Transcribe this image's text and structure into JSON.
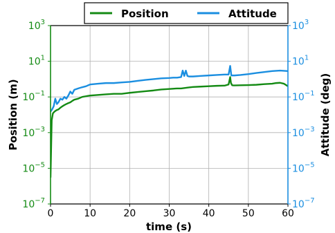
{
  "chart_data": {
    "type": "line",
    "title": "",
    "xlabel": "time (s)",
    "ylabel_left": "Position (m)",
    "ylabel_right": "Attitude (deg)",
    "xlim": [
      0,
      60
    ],
    "ylim_left": [
      1e-07,
      1000
    ],
    "ylim_right": [
      1e-07,
      1000
    ],
    "yscale": "log",
    "grid": true,
    "legend_position": "top-right",
    "x_ticks": [
      "0",
      "10",
      "20",
      "30",
      "40",
      "50",
      "60"
    ],
    "y_ticks": [
      {
        "base": "10",
        "exp": "3",
        "value": 1000
      },
      {
        "base": "10",
        "exp": "1",
        "value": 10
      },
      {
        "base": "10",
        "exp": "−1",
        "value": 0.1
      },
      {
        "base": "10",
        "exp": "−3",
        "value": 0.001
      },
      {
        "base": "10",
        "exp": "−5",
        "value": 1e-05
      },
      {
        "base": "10",
        "exp": "−7",
        "value": 1e-07
      }
    ],
    "colors": {
      "position": "#138a13",
      "attitude": "#1a8ee0",
      "grid": "#b0b0b0",
      "axes": "#000000"
    },
    "series": [
      {
        "name": "Position",
        "axis": "left",
        "x": [
          0,
          0.3,
          0.6,
          1,
          1.5,
          2,
          2.5,
          3,
          3.5,
          4,
          4.5,
          5,
          5.5,
          6,
          7,
          8,
          9,
          10,
          12,
          14,
          16,
          18,
          19,
          20,
          22,
          24,
          26,
          28,
          30,
          31,
          32,
          33,
          34,
          35,
          36,
          38,
          40,
          42,
          44,
          45,
          45.4,
          45.6,
          45.9,
          46.3,
          48,
          50,
          52,
          54,
          56,
          57,
          58,
          59,
          60
        ],
        "y": [
          3e-06,
          0.005,
          0.012,
          0.015,
          0.018,
          0.02,
          0.025,
          0.03,
          0.035,
          0.04,
          0.045,
          0.05,
          0.06,
          0.07,
          0.08,
          0.1,
          0.11,
          0.12,
          0.13,
          0.14,
          0.15,
          0.15,
          0.16,
          0.17,
          0.19,
          0.21,
          0.23,
          0.26,
          0.28,
          0.29,
          0.3,
          0.3,
          0.32,
          0.34,
          0.36,
          0.38,
          0.4,
          0.42,
          0.43,
          0.5,
          1.3,
          0.6,
          0.45,
          0.44,
          0.45,
          0.46,
          0.48,
          0.52,
          0.55,
          0.6,
          0.62,
          0.55,
          0.4
        ]
      },
      {
        "name": "Attitude",
        "axis": "right",
        "x": [
          0,
          0.4,
          0.8,
          1.2,
          1.6,
          2,
          2.5,
          3,
          3.5,
          4,
          4.5,
          5,
          5.5,
          6,
          7,
          8,
          9,
          10,
          12,
          14,
          16,
          18,
          20,
          22,
          24,
          26,
          28,
          30,
          31,
          32,
          33,
          33.4,
          33.8,
          34.2,
          34.6,
          35,
          36,
          38,
          40,
          42,
          44,
          45,
          45.4,
          45.7,
          46.1,
          46.5,
          48,
          50,
          52,
          54,
          56,
          58,
          60
        ],
        "y": [
          0.015,
          0.02,
          0.03,
          0.08,
          0.04,
          0.05,
          0.08,
          0.07,
          0.1,
          0.08,
          0.12,
          0.2,
          0.15,
          0.25,
          0.3,
          0.35,
          0.4,
          0.5,
          0.55,
          0.6,
          0.6,
          0.65,
          0.7,
          0.8,
          0.9,
          1.0,
          1.1,
          1.15,
          1.2,
          1.2,
          1.3,
          3.0,
          1.5,
          3.0,
          1.5,
          1.4,
          1.4,
          1.5,
          1.6,
          1.7,
          1.8,
          1.8,
          5.5,
          1.6,
          1.6,
          1.6,
          1.7,
          1.9,
          2.2,
          2.5,
          2.8,
          3.0,
          2.8
        ]
      }
    ]
  }
}
